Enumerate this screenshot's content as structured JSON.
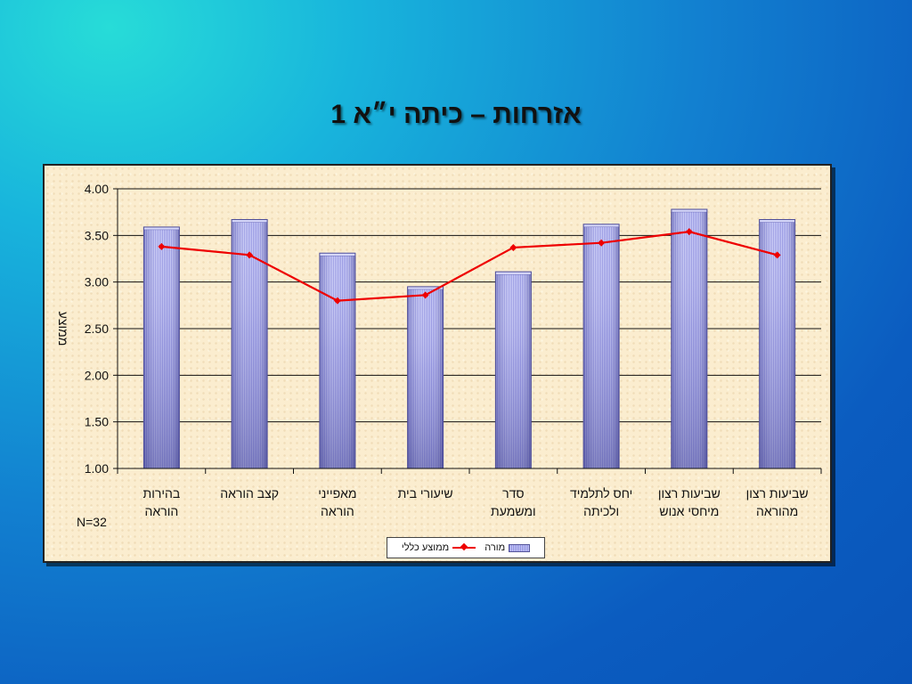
{
  "slide": {
    "title": "אזרחות – כיתה י״א 1",
    "note": "N=32"
  },
  "colors": {
    "bar_fill": "#8f90e0",
    "bar_highlight": "#c6c8f6",
    "line": "#ee0000",
    "plot_background": "#fbedcf"
  },
  "chart_data": {
    "type": "bar",
    "title": "",
    "ylabel": "ממוצע",
    "xlabel": "",
    "ylim": [
      1.0,
      4.0
    ],
    "yticks": [
      "1.00",
      "1.50",
      "2.00",
      "2.50",
      "3.00",
      "3.50",
      "4.00"
    ],
    "grid": true,
    "legend_position": "bottom",
    "categories": [
      [
        "בהירות",
        "הוראה"
      ],
      [
        "קצב הוראה"
      ],
      [
        "מאפייני",
        "הוראה"
      ],
      [
        "שיעורי בית"
      ],
      [
        "סדר",
        "ומשמעת"
      ],
      [
        "יחס לתלמיד",
        "ולכיתה"
      ],
      [
        "שביעות רצון",
        "מיחסי אנוש"
      ],
      [
        "שביעות רצון",
        "מהוראה"
      ]
    ],
    "series": [
      {
        "name": "מורה",
        "type": "bar",
        "values": [
          3.59,
          3.67,
          3.31,
          2.95,
          3.11,
          3.62,
          3.78,
          3.67
        ]
      },
      {
        "name": "ממוצע כללי",
        "type": "line",
        "values": [
          3.38,
          3.29,
          2.8,
          2.86,
          3.37,
          3.42,
          3.54,
          3.29
        ]
      }
    ]
  }
}
